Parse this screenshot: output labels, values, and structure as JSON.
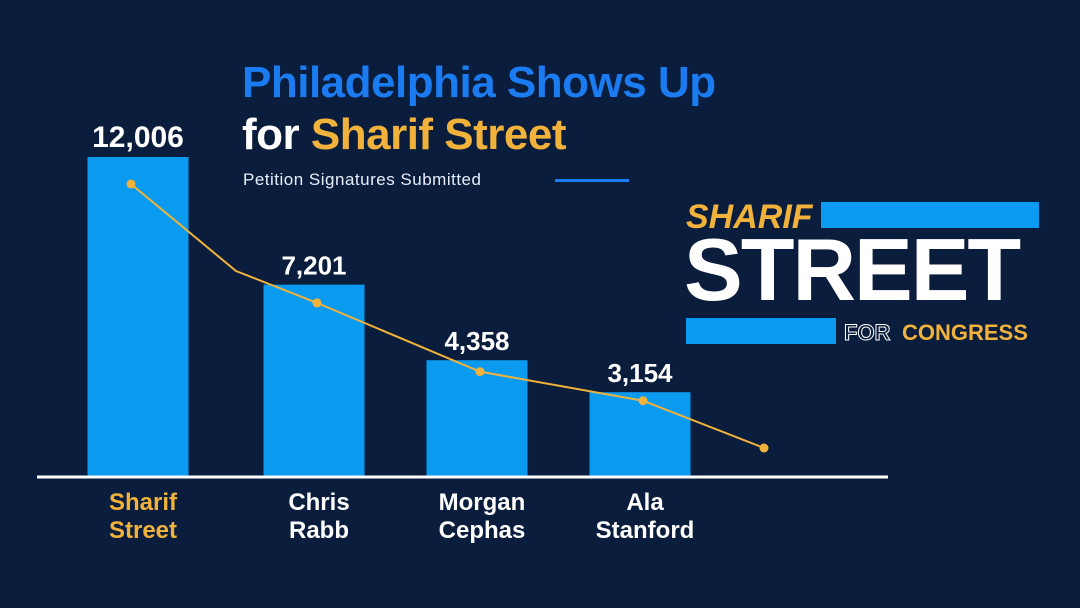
{
  "header": {
    "title_line1": "Philadelphia Shows Up",
    "title_line2_prefix": "for ",
    "title_line2_highlight": "Sharif Street",
    "subtitle": "Petition Signatures Submitted"
  },
  "logo": {
    "top": "SHARIF",
    "main": "STREET",
    "for": "FOR",
    "congress": "CONGRESS"
  },
  "colors": {
    "background": "#0b1d3c",
    "bar": "#0a9af0",
    "accent": "#f0b23a",
    "title_blue": "#1a7cf0",
    "white": "#ffffff"
  },
  "chart_data": {
    "type": "bar",
    "categories": [
      "Sharif Street",
      "Chris Rabb",
      "Morgan Cephas",
      "Ala Stanford"
    ],
    "category_lines": [
      [
        "Sharif",
        "Street"
      ],
      [
        "Chris",
        "Rabb"
      ],
      [
        "Morgan",
        "Cephas"
      ],
      [
        "Ala",
        "Stanford"
      ]
    ],
    "values": [
      12006,
      7201,
      4358,
      3154
    ],
    "value_labels": [
      "12,006",
      "7,201",
      "4,358",
      "3,154"
    ],
    "trend_line": true,
    "ylim": [
      0,
      12006
    ],
    "grid": false,
    "highlight_category": "Sharif Street"
  }
}
